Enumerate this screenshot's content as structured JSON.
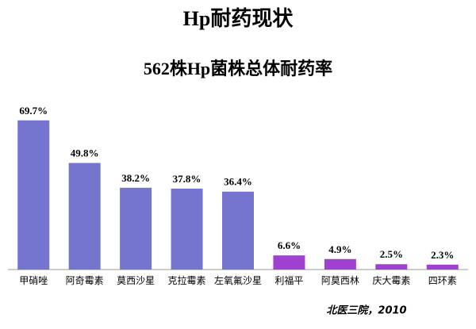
{
  "chart_data": {
    "type": "bar",
    "title": "Hp耐药现状",
    "subtitle": "562株Hp菌株总体耐药率",
    "categories": [
      "甲硝唑",
      "阿奇霉素",
      "莫西沙星",
      "克拉霉素",
      "左氧氟沙星",
      "利福平",
      "阿莫西林",
      "庆大霉素",
      "四环素"
    ],
    "values": [
      69.7,
      49.8,
      38.2,
      37.8,
      36.4,
      6.6,
      4.9,
      2.5,
      2.3
    ],
    "value_labels": [
      "69.7%",
      "49.8%",
      "38.2%",
      "37.8%",
      "36.4%",
      "6.6%",
      "4.9%",
      "2.5%",
      "2.3%"
    ],
    "colors": [
      "#7575d0",
      "#7575d0",
      "#7575d0",
      "#7575d0",
      "#7575d0",
      "#a040d0",
      "#a040d0",
      "#a040d0",
      "#a040d0"
    ],
    "source": "北医三院，2010"
  }
}
